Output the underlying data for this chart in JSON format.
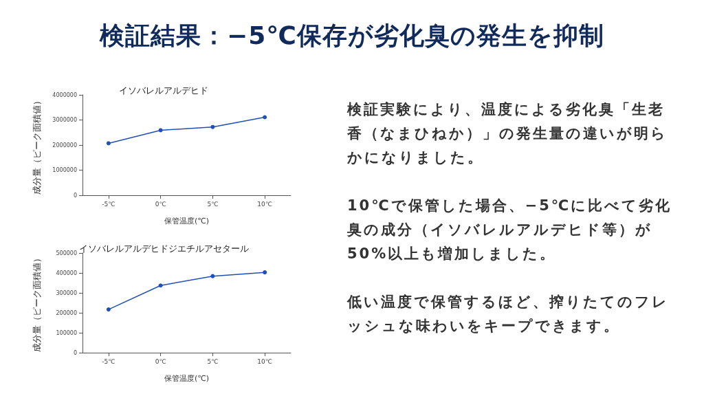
{
  "chart_data": [
    {
      "type": "other",
      "title": "検証結果：−5℃保存が劣化臭の発生を抑制"
    },
    {
      "type": "line",
      "title": "イソバレルアルデヒド",
      "xlabel": "保管温度(℃)",
      "ylabel": "成分量（ピーク面積値）",
      "categories": [
        "-5℃",
        "0℃",
        "5℃",
        "10℃"
      ],
      "values": [
        2070000,
        2590000,
        2720000,
        3110000
      ],
      "color": "#1f4fb8",
      "ylim": [
        0,
        4000000
      ],
      "yticks": [
        0,
        1000000,
        2000000,
        3000000,
        4000000
      ],
      "marker": "circle"
    },
    {
      "type": "line",
      "title": "イソバレルアルデヒドジエチルアセタール",
      "xlabel": "保管温度(℃)",
      "ylabel": "成分量（ピーク面積値）",
      "categories": [
        "-5℃",
        "0℃",
        "5℃",
        "10℃"
      ],
      "values": [
        217000,
        337000,
        384000,
        403000
      ],
      "color": "#1f4fb8",
      "ylim": [
        0,
        500000
      ],
      "yticks": [
        0,
        100000,
        200000,
        300000,
        400000,
        500000
      ],
      "marker": "circle"
    },
    {
      "type": "other",
      "annotations": [
        "検証実験により、温度による劣化臭「生老香（なまひねか）」の発生量の違いが明らかになりました。",
        "10℃で保管した場合、−5℃に比べて劣化臭の成分（イソバレルアルデヒド等）が50%以上も増加しました。",
        "低い温度で保管するほど、搾りたてのフレッシュな味わいをキープできます。"
      ]
    }
  ]
}
